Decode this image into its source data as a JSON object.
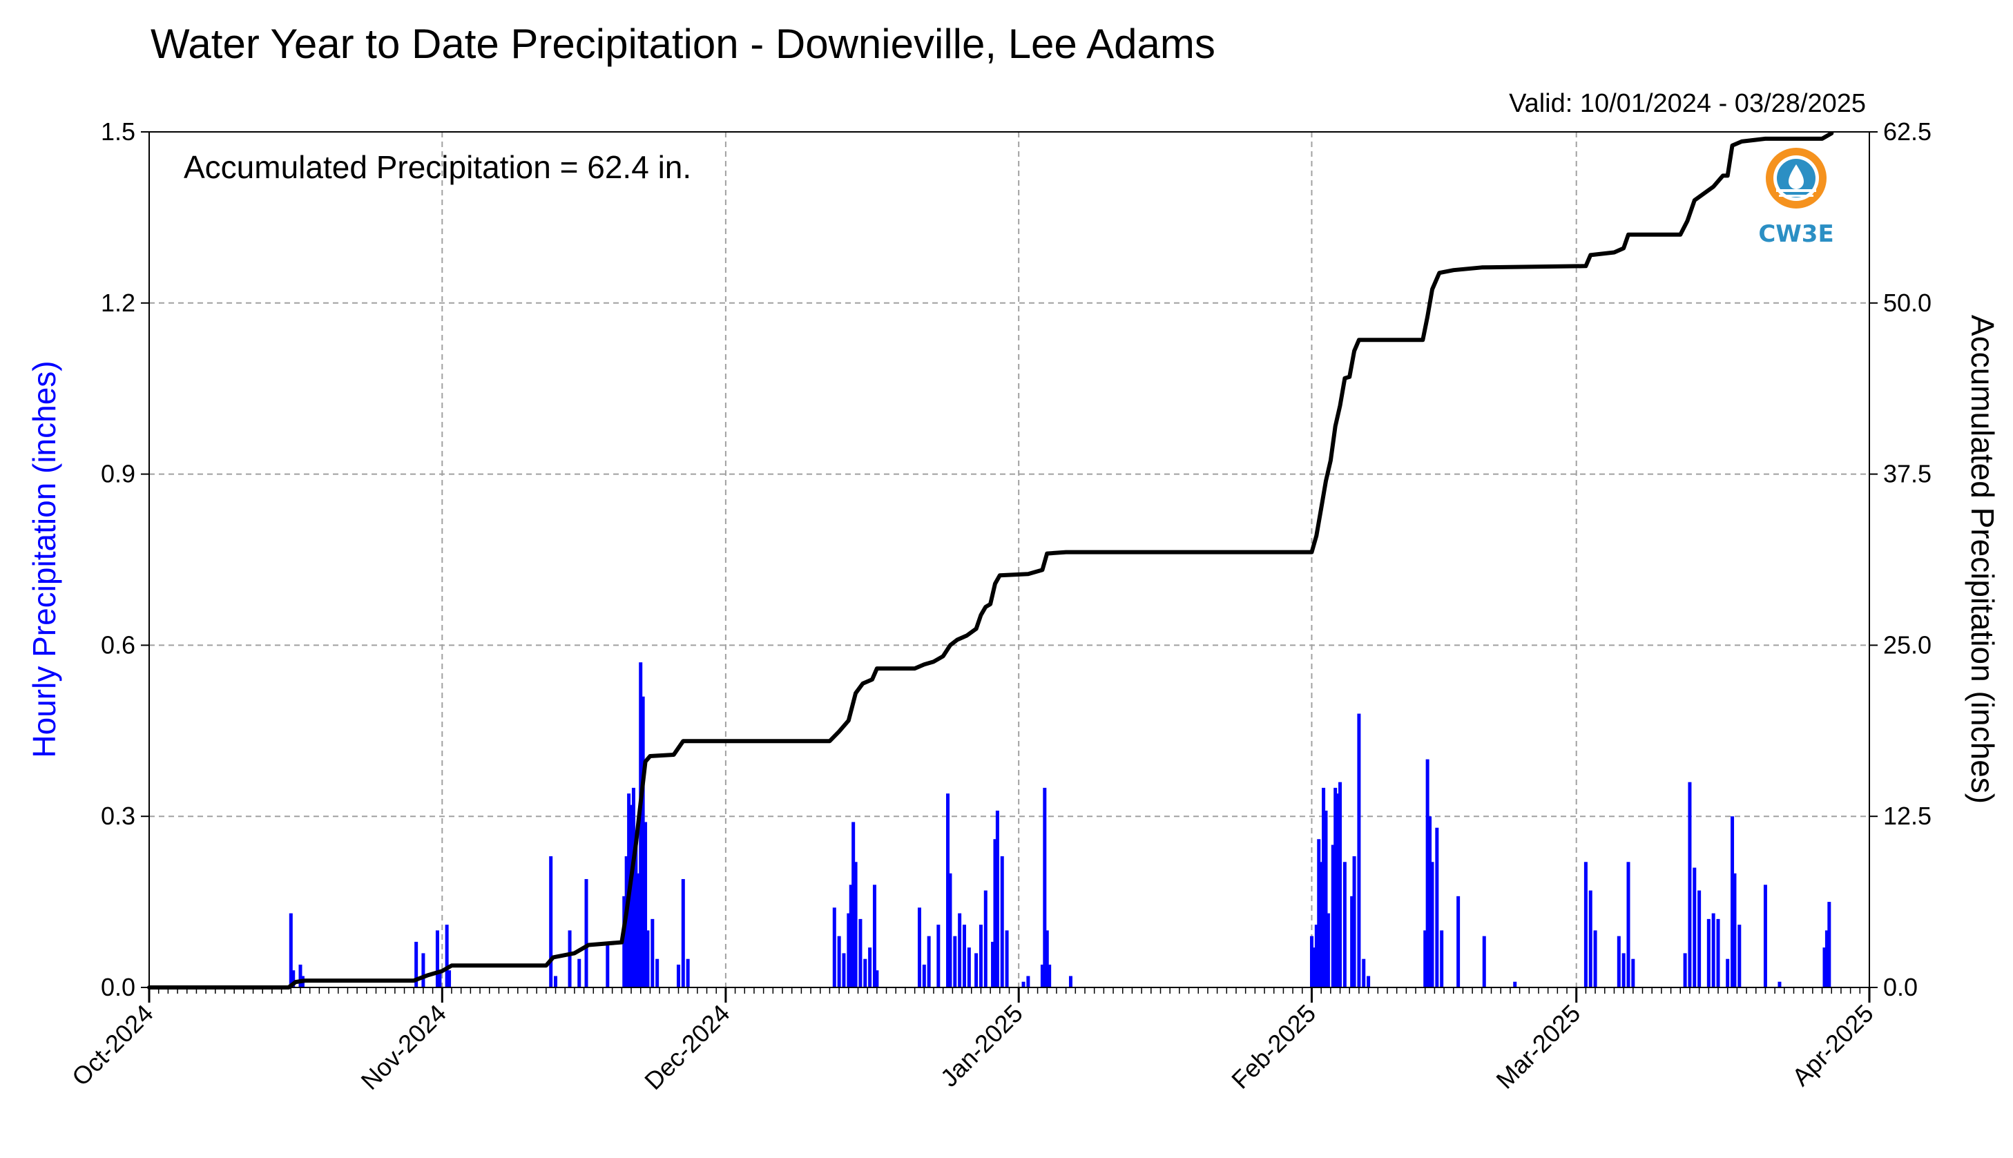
{
  "chart_data": {
    "type": "bar",
    "title": "Water Year to Date Precipitation - Downieville, Lee Adams",
    "subtitle": "Valid: 10/01/2024 - 03/28/2025",
    "annotation": "Accumulated Precipitation = 62.4 in.",
    "ylabel_left": "Hourly Precipitation (inches)",
    "ylabel_right": "Accumulated Precipitation (inches)",
    "x_range": [
      "2024-10-01",
      "2025-04-01"
    ],
    "x_tick_labels": [
      {
        "date": "2024-10-01",
        "label": "Oct-2024"
      },
      {
        "date": "2024-11-01",
        "label": "Nov-2024"
      },
      {
        "date": "2024-12-01",
        "label": "Dec-2024"
      },
      {
        "date": "2025-01-01",
        "label": "Jan-2025"
      },
      {
        "date": "2025-02-01",
        "label": "Feb-2025"
      },
      {
        "date": "2025-03-01",
        "label": "Mar-2025"
      },
      {
        "date": "2025-04-01",
        "label": "Apr-2025"
      }
    ],
    "ylim_left": [
      0,
      1.5
    ],
    "yticks_left": [
      "0.0",
      "0.3",
      "0.6",
      "0.9",
      "1.2",
      "1.5"
    ],
    "ylim_right": [
      0,
      62.5
    ],
    "yticks_right": [
      "0.0",
      "12.5",
      "25.0",
      "37.5",
      "50.0",
      "62.5"
    ],
    "grid": true,
    "series": [
      {
        "name": "Hourly Precipitation",
        "type": "bar",
        "axis": "left",
        "color": "#0000ff",
        "points": [
          [
            "2024-10-16T00",
            0.13
          ],
          [
            "2024-10-16T06",
            0.03
          ],
          [
            "2024-10-17T00",
            0.04
          ],
          [
            "2024-10-17T06",
            0.02
          ],
          [
            "2024-10-29T06",
            0.08
          ],
          [
            "2024-10-30T00",
            0.06
          ],
          [
            "2024-10-31T12",
            0.1
          ],
          [
            "2024-10-31T18",
            0.03
          ],
          [
            "2024-11-01T12",
            0.11
          ],
          [
            "2024-11-01T18",
            0.03
          ],
          [
            "2024-11-12T12",
            0.23
          ],
          [
            "2024-11-13T00",
            0.02
          ],
          [
            "2024-11-14T12",
            0.1
          ],
          [
            "2024-11-15T12",
            0.05
          ],
          [
            "2024-11-16T06",
            0.19
          ],
          [
            "2024-11-18T12",
            0.08
          ],
          [
            "2024-11-20T06",
            0.16
          ],
          [
            "2024-11-20T12",
            0.23
          ],
          [
            "2024-11-20T18",
            0.34
          ],
          [
            "2024-11-21T00",
            0.32
          ],
          [
            "2024-11-21T06",
            0.35
          ],
          [
            "2024-11-21T12",
            0.25
          ],
          [
            "2024-11-21T18",
            0.2
          ],
          [
            "2024-11-22T00",
            0.57
          ],
          [
            "2024-11-22T06",
            0.51
          ],
          [
            "2024-11-22T12",
            0.29
          ],
          [
            "2024-11-22T18",
            0.1
          ],
          [
            "2024-11-23T06",
            0.12
          ],
          [
            "2024-11-23T18",
            0.05
          ],
          [
            "2024-11-26T00",
            0.04
          ],
          [
            "2024-11-26T12",
            0.19
          ],
          [
            "2024-11-27T00",
            0.05
          ],
          [
            "2024-12-12T12",
            0.14
          ],
          [
            "2024-12-13T00",
            0.09
          ],
          [
            "2024-12-13T12",
            0.06
          ],
          [
            "2024-12-14T00",
            0.13
          ],
          [
            "2024-12-14T06",
            0.18
          ],
          [
            "2024-12-14T12",
            0.29
          ],
          [
            "2024-12-14T18",
            0.22
          ],
          [
            "2024-12-15T06",
            0.12
          ],
          [
            "2024-12-15T18",
            0.05
          ],
          [
            "2024-12-16T06",
            0.07
          ],
          [
            "2024-12-16T18",
            0.18
          ],
          [
            "2024-12-17T00",
            0.03
          ],
          [
            "2024-12-21T12",
            0.14
          ],
          [
            "2024-12-22T00",
            0.04
          ],
          [
            "2024-12-22T12",
            0.09
          ],
          [
            "2024-12-23T12",
            0.11
          ],
          [
            "2024-12-24T12",
            0.34
          ],
          [
            "2024-12-24T18",
            0.2
          ],
          [
            "2024-12-25T06",
            0.09
          ],
          [
            "2024-12-25T18",
            0.13
          ],
          [
            "2024-12-26T06",
            0.11
          ],
          [
            "2024-12-26T18",
            0.07
          ],
          [
            "2024-12-27T12",
            0.06
          ],
          [
            "2024-12-28T00",
            0.11
          ],
          [
            "2024-12-28T12",
            0.17
          ],
          [
            "2024-12-29T06",
            0.08
          ],
          [
            "2024-12-29T12",
            0.26
          ],
          [
            "2024-12-29T18",
            0.31
          ],
          [
            "2024-12-30T06",
            0.23
          ],
          [
            "2024-12-30T18",
            0.1
          ],
          [
            "2025-01-01T12",
            0.01
          ],
          [
            "2025-01-02T00",
            0.02
          ],
          [
            "2025-01-03T12",
            0.04
          ],
          [
            "2025-01-03T18",
            0.35
          ],
          [
            "2025-01-04T00",
            0.1
          ],
          [
            "2025-01-04T06",
            0.04
          ],
          [
            "2025-01-06T12",
            0.02
          ],
          [
            "2025-02-01T00",
            0.09
          ],
          [
            "2025-02-01T06",
            0.07
          ],
          [
            "2025-02-01T12",
            0.11
          ],
          [
            "2025-02-01T18",
            0.26
          ],
          [
            "2025-02-02T00",
            0.22
          ],
          [
            "2025-02-02T06",
            0.35
          ],
          [
            "2025-02-02T12",
            0.31
          ],
          [
            "2025-02-02T18",
            0.13
          ],
          [
            "2025-02-03T06",
            0.25
          ],
          [
            "2025-02-03T12",
            0.35
          ],
          [
            "2025-02-03T18",
            0.34
          ],
          [
            "2025-02-04T00",
            0.36
          ],
          [
            "2025-02-04T12",
            0.22
          ],
          [
            "2025-02-05T06",
            0.16
          ],
          [
            "2025-02-05T12",
            0.23
          ],
          [
            "2025-02-06T00",
            0.48
          ],
          [
            "2025-02-06T12",
            0.05
          ],
          [
            "2025-02-07T00",
            0.02
          ],
          [
            "2025-02-13T00",
            0.1
          ],
          [
            "2025-02-13T06",
            0.4
          ],
          [
            "2025-02-13T12",
            0.3
          ],
          [
            "2025-02-13T18",
            0.22
          ],
          [
            "2025-02-14T06",
            0.28
          ],
          [
            "2025-02-14T18",
            0.1
          ],
          [
            "2025-02-16T12",
            0.16
          ],
          [
            "2025-02-19T06",
            0.09
          ],
          [
            "2025-02-22T12",
            0.01
          ],
          [
            "2025-03-02T00",
            0.22
          ],
          [
            "2025-03-02T12",
            0.17
          ],
          [
            "2025-03-03T00",
            0.1
          ],
          [
            "2025-03-05T12",
            0.09
          ],
          [
            "2025-03-06T00",
            0.06
          ],
          [
            "2025-03-06T12",
            0.22
          ],
          [
            "2025-03-07T00",
            0.05
          ],
          [
            "2025-03-12T12",
            0.06
          ],
          [
            "2025-03-13T00",
            0.36
          ],
          [
            "2025-03-13T12",
            0.21
          ],
          [
            "2025-03-14T00",
            0.17
          ],
          [
            "2025-03-15T00",
            0.12
          ],
          [
            "2025-03-15T12",
            0.13
          ],
          [
            "2025-03-16T00",
            0.12
          ],
          [
            "2025-03-17T00",
            0.05
          ],
          [
            "2025-03-17T12",
            0.3
          ],
          [
            "2025-03-17T18",
            0.2
          ],
          [
            "2025-03-18T06",
            0.11
          ],
          [
            "2025-03-21T00",
            0.18
          ],
          [
            "2025-03-22T12",
            0.01
          ],
          [
            "2025-03-27T06",
            0.07
          ],
          [
            "2025-03-27T12",
            0.1
          ],
          [
            "2025-03-27T18",
            0.15
          ]
        ]
      },
      {
        "name": "Accumulated Precipitation",
        "type": "line",
        "axis": "right",
        "color": "#000000",
        "points": [
          [
            "2024-10-01T00",
            0
          ],
          [
            "2024-10-15T18",
            0
          ],
          [
            "2024-10-16T12",
            0.4
          ],
          [
            "2024-10-17T12",
            0.5
          ],
          [
            "2024-10-29T00",
            0.5
          ],
          [
            "2024-10-30T12",
            0.9
          ],
          [
            "2024-11-01T00",
            1.2
          ],
          [
            "2024-11-02T00",
            1.6
          ],
          [
            "2024-11-12T00",
            1.6
          ],
          [
            "2024-11-12T18",
            2.2
          ],
          [
            "2024-11-15T00",
            2.5
          ],
          [
            "2024-11-16T12",
            3.1
          ],
          [
            "2024-11-20T00",
            3.3
          ],
          [
            "2024-11-20T12",
            5.5
          ],
          [
            "2024-11-21T00",
            8.0
          ],
          [
            "2024-11-21T12",
            10.5
          ],
          [
            "2024-11-22T00",
            13.5
          ],
          [
            "2024-11-22T12",
            16.5
          ],
          [
            "2024-11-23T00",
            16.9
          ],
          [
            "2024-11-25T12",
            17.0
          ],
          [
            "2024-11-26T12",
            18.0
          ],
          [
            "2024-12-12T00",
            18.0
          ],
          [
            "2024-12-13T00",
            18.7
          ],
          [
            "2024-12-14T00",
            19.5
          ],
          [
            "2024-12-14T18",
            21.5
          ],
          [
            "2024-12-15T12",
            22.2
          ],
          [
            "2024-12-16T12",
            22.5
          ],
          [
            "2024-12-17T00",
            23.3
          ],
          [
            "2024-12-21T00",
            23.3
          ],
          [
            "2024-12-22T00",
            23.6
          ],
          [
            "2024-12-23T00",
            23.8
          ],
          [
            "2024-12-24T00",
            24.2
          ],
          [
            "2024-12-24T18",
            25.0
          ],
          [
            "2024-12-25T12",
            25.4
          ],
          [
            "2024-12-26T12",
            25.7
          ],
          [
            "2024-12-27T12",
            26.2
          ],
          [
            "2024-12-28T00",
            27.2
          ],
          [
            "2024-12-28T12",
            27.8
          ],
          [
            "2024-12-29T00",
            28.0
          ],
          [
            "2024-12-29T12",
            29.5
          ],
          [
            "2024-12-30T00",
            30.1
          ],
          [
            "2025-01-02T00",
            30.2
          ],
          [
            "2025-01-03T12",
            30.5
          ],
          [
            "2025-01-04T00",
            31.7
          ],
          [
            "2025-01-06T00",
            31.8
          ],
          [
            "2025-02-01T00",
            31.8
          ],
          [
            "2025-02-01T12",
            33.0
          ],
          [
            "2025-02-02T00",
            35.0
          ],
          [
            "2025-02-02T12",
            37.0
          ],
          [
            "2025-02-03T00",
            38.5
          ],
          [
            "2025-02-03T12",
            41.0
          ],
          [
            "2025-02-04T00",
            42.5
          ],
          [
            "2025-02-04T12",
            44.5
          ],
          [
            "2025-02-05T00",
            44.6
          ],
          [
            "2025-02-05T12",
            46.5
          ],
          [
            "2025-02-06T00",
            47.3
          ],
          [
            "2025-02-07T00",
            47.3
          ],
          [
            "2025-02-12T18",
            47.3
          ],
          [
            "2025-02-13T06",
            49.0
          ],
          [
            "2025-02-13T18",
            51.0
          ],
          [
            "2025-02-14T12",
            52.2
          ],
          [
            "2025-02-16T00",
            52.4
          ],
          [
            "2025-02-19T00",
            52.6
          ],
          [
            "2025-03-02T00",
            52.7
          ],
          [
            "2025-03-02T12",
            53.5
          ],
          [
            "2025-03-05T00",
            53.7
          ],
          [
            "2025-03-06T00",
            54.0
          ],
          [
            "2025-03-06T12",
            55.0
          ],
          [
            "2025-03-12T00",
            55.0
          ],
          [
            "2025-03-12T18",
            56.0
          ],
          [
            "2025-03-13T12",
            57.5
          ],
          [
            "2025-03-14T12",
            58.0
          ],
          [
            "2025-03-15T12",
            58.5
          ],
          [
            "2025-03-16T12",
            59.3
          ],
          [
            "2025-03-17T00",
            59.3
          ],
          [
            "2025-03-17T12",
            61.5
          ],
          [
            "2025-03-18T12",
            61.8
          ],
          [
            "2025-03-21T00",
            62.0
          ],
          [
            "2025-03-27T00",
            62.0
          ],
          [
            "2025-03-27T18",
            62.3
          ],
          [
            "2025-03-28T00",
            62.4
          ]
        ]
      }
    ]
  },
  "logo": {
    "text": "CW3E",
    "colors": {
      "ring": "#f5921e",
      "body": "#2b8fc4",
      "text": "#2b8fc4"
    }
  },
  "colors": {
    "hourly": "#0000ff",
    "accumulated": "#000000",
    "grid": "#a0a0a0",
    "left_label": "#0000ff"
  }
}
